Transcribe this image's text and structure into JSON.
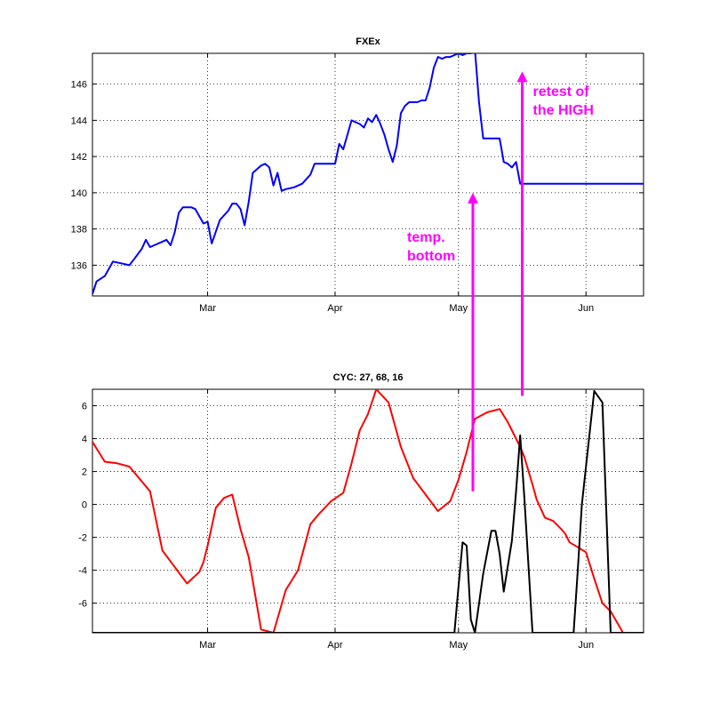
{
  "chart_data": [
    {
      "type": "line",
      "title": "FXEx",
      "xlabel": "",
      "ylabel": "",
      "x_ticks": [
        "Mar",
        "Apr",
        "May",
        "Jun"
      ],
      "x_tick_days": [
        28,
        59,
        89,
        120
      ],
      "xlim": [
        0,
        134
      ],
      "y_ticks": [
        136,
        138,
        140,
        142,
        144,
        146
      ],
      "ylim": [
        134.3,
        147.7
      ],
      "grid": true,
      "series": [
        {
          "color": "#0000ff",
          "x": [
            0,
            1,
            3,
            5,
            7,
            9,
            10,
            12,
            13,
            14,
            15,
            17,
            18,
            19,
            20,
            21,
            22,
            23,
            24,
            25,
            27,
            28,
            29,
            31,
            33,
            34,
            35,
            36,
            37,
            38,
            39,
            40,
            41,
            42,
            43,
            44,
            45,
            46,
            47,
            49,
            51,
            53,
            54,
            55,
            56,
            57,
            58,
            59,
            60,
            61,
            63,
            65,
            66,
            67,
            68,
            69,
            70,
            71,
            72,
            73,
            74,
            75,
            76,
            77,
            78,
            79,
            80,
            81,
            82,
            83,
            84,
            85,
            86,
            87,
            88,
            89,
            90,
            91,
            92,
            93,
            94,
            95,
            96,
            97,
            98,
            99,
            100,
            101,
            102,
            103,
            104,
            105,
            106,
            107,
            108,
            109,
            110,
            111,
            112,
            113,
            114,
            115,
            116,
            117,
            118,
            119,
            120,
            121,
            122,
            123,
            124,
            125,
            126,
            127,
            128,
            129,
            130,
            131,
            132,
            133,
            134
          ],
          "y": [
            134.4,
            135.1,
            135.4,
            136.2,
            136.1,
            136.0,
            136.3,
            136.9,
            137.4,
            137.0,
            137.1,
            137.3,
            137.4,
            137.1,
            137.8,
            138.9,
            139.2,
            139.2,
            139.2,
            139.1,
            138.3,
            138.4,
            137.2,
            138.5,
            139.0,
            139.4,
            139.4,
            139.1,
            138.2,
            139.5,
            141.1,
            141.3,
            141.5,
            141.6,
            141.4,
            140.4,
            141.1,
            140.1,
            140.2,
            140.3,
            140.5,
            141.0,
            141.6,
            141.6,
            141.6,
            141.6,
            141.6,
            141.6,
            142.7,
            142.4,
            144.0,
            143.8,
            143.6,
            144.1,
            143.9,
            144.3,
            143.8,
            143.2,
            142.4,
            141.7,
            142.6,
            144.4,
            144.8,
            145.0,
            145.0,
            145.0,
            145.1,
            145.1,
            145.8,
            146.9,
            147.5,
            147.4,
            147.5,
            147.5,
            147.6,
            147.7,
            147.6,
            147.7,
            147.7,
            147.9,
            145.0,
            143.0,
            143.0,
            143.0,
            143.0,
            143.0,
            141.7,
            141.6,
            141.4,
            141.7,
            140.5,
            140.5,
            140.5,
            140.5,
            140.5,
            140.5,
            140.5,
            140.5,
            140.5,
            140.5,
            140.5,
            140.5,
            140.5,
            140.5,
            140.5,
            140.5,
            140.5,
            140.5,
            140.5,
            140.5,
            140.5,
            140.5,
            140.5,
            140.5,
            140.5,
            140.5,
            140.5,
            140.5,
            140.5,
            140.5,
            140.5
          ]
        }
      ],
      "annotations": [
        {
          "lines": [
            "temp.",
            "bottom"
          ],
          "color": "#ff00ff",
          "arrow_x": 92.5,
          "arrow_to_y": 140.0
        },
        {
          "lines": [
            "retest of",
            "the HIGH"
          ],
          "color": "#ff00ff",
          "arrow_x": 104.5,
          "arrow_to_y": 146.7
        }
      ]
    },
    {
      "type": "line",
      "title": "CYC: 27, 68, 16",
      "xlabel": "",
      "ylabel": "",
      "x_ticks": [
        "Mar",
        "Apr",
        "May",
        "Jun"
      ],
      "x_tick_days": [
        28,
        59,
        89,
        120
      ],
      "xlim": [
        0,
        134
      ],
      "y_ticks": [
        -6,
        -4,
        -2,
        0,
        2,
        4,
        6
      ],
      "ylim": [
        -7.8,
        7.0
      ],
      "grid": true,
      "series": [
        {
          "color": "#ff0000",
          "x": [
            0,
            3,
            6,
            9,
            12,
            14,
            17,
            20,
            23,
            26,
            27,
            28,
            30,
            32,
            34,
            36,
            38,
            41,
            44,
            47,
            50,
            53,
            55,
            58,
            61,
            63,
            65,
            67,
            69,
            72,
            75,
            78,
            81,
            84,
            87,
            89,
            91,
            93,
            96,
            99,
            101,
            104,
            105,
            107,
            108,
            110,
            112,
            114,
            115,
            116,
            118,
            120,
            122,
            124,
            126,
            129,
            131,
            133,
            134
          ],
          "y": [
            3.8,
            2.6,
            2.5,
            2.3,
            1.4,
            0.8,
            -2.8,
            -3.8,
            -4.8,
            -4.1,
            -3.5,
            -2.5,
            -0.2,
            0.4,
            0.6,
            -1.5,
            -3.2,
            -7.6,
            -7.8,
            -5.2,
            -4.0,
            -1.2,
            -0.6,
            0.2,
            0.7,
            2.5,
            4.5,
            5.5,
            7.0,
            6.2,
            3.5,
            1.6,
            0.6,
            -0.4,
            0.2,
            1.5,
            3.2,
            5.2,
            5.6,
            5.8,
            5.0,
            3.5,
            2.9,
            1.2,
            0.3,
            -0.8,
            -1.0,
            -1.5,
            -1.8,
            -2.3,
            -2.6,
            -2.9,
            -4.5,
            -6.0,
            -6.5,
            -7.8,
            -7.8,
            -7.8,
            -7.8
          ]
        },
        {
          "color": "#000000",
          "x": [
            0,
            20,
            40,
            60,
            80,
            88,
            89,
            90,
            91,
            92,
            93,
            95,
            97,
            98,
            99,
            100,
            102,
            103,
            104,
            105,
            107,
            110,
            115,
            116,
            117,
            118,
            119,
            122,
            124,
            126,
            130,
            134
          ],
          "y": [
            -7.8,
            -7.8,
            -7.8,
            -7.8,
            -7.8,
            -7.8,
            -5.0,
            -2.3,
            -2.5,
            -7.0,
            -7.8,
            -4.2,
            -1.6,
            -1.6,
            -3.0,
            -5.3,
            -2.2,
            0.8,
            4.2,
            0.5,
            -7.8,
            -7.8,
            -7.8,
            -7.8,
            -7.8,
            -4.0,
            0.0,
            6.9,
            6.2,
            -7.8,
            -7.8,
            -7.8
          ]
        }
      ]
    }
  ]
}
